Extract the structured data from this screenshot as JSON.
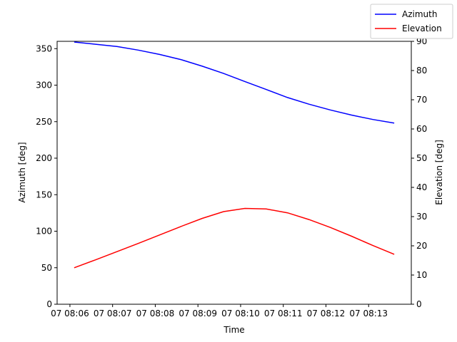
{
  "chart_data": {
    "type": "line",
    "xlabel": "Time",
    "ylabel_left": "Azimuth [deg]",
    "ylabel_right": "Elevation [deg]",
    "x_ticks": [
      "07 08:06",
      "07 08:07",
      "07 08:08",
      "07 08:09",
      "07 08:10",
      "07 08:11",
      "07 08:12",
      "07 08:13"
    ],
    "x_tick_minutes": [
      0,
      1,
      2,
      3,
      4,
      5,
      6,
      7
    ],
    "xlim_minutes": [
      -0.3,
      8.0
    ],
    "ylim_left": [
      0,
      360
    ],
    "ylim_right": [
      0,
      90
    ],
    "y_ticks_left": [
      0,
      50,
      100,
      150,
      200,
      250,
      300,
      350
    ],
    "y_ticks_right": [
      0,
      10,
      20,
      30,
      40,
      50,
      60,
      70,
      80,
      90
    ],
    "legend_position": "upper-right",
    "grid": false,
    "series": [
      {
        "name": "Azimuth",
        "axis": "left",
        "color": "#0000ff",
        "x_minutes": [
          0.1,
          0.6,
          1.1,
          1.6,
          2.1,
          2.6,
          3.1,
          3.6,
          4.1,
          4.6,
          5.1,
          5.6,
          6.1,
          6.6,
          7.1,
          7.6
        ],
        "values": [
          359,
          356,
          353,
          348,
          342,
          335,
          326,
          316,
          305,
          294,
          283,
          274,
          266,
          259,
          253,
          248
        ]
      },
      {
        "name": "Elevation",
        "axis": "right",
        "color": "#ff0000",
        "x_minutes": [
          0.1,
          0.6,
          1.1,
          1.6,
          2.1,
          2.6,
          3.1,
          3.6,
          4.1,
          4.6,
          5.1,
          5.6,
          6.1,
          6.6,
          7.1,
          7.6
        ],
        "values": [
          12.5,
          15.2,
          18.0,
          20.8,
          23.7,
          26.6,
          29.4,
          31.7,
          32.8,
          32.6,
          31.3,
          29.0,
          26.3,
          23.3,
          20.1,
          17.1
        ]
      }
    ]
  }
}
